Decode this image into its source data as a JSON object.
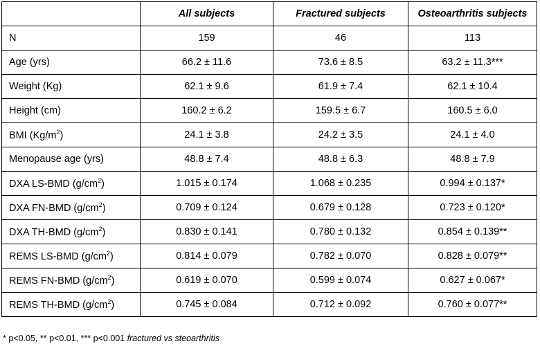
{
  "table": {
    "headers": [
      "",
      "All subjects",
      "Fractured subjects",
      "Osteoarthritis subjects"
    ],
    "rows": [
      {
        "label": "N",
        "all": "159",
        "fractured": "46",
        "osteoarthritis": "113"
      },
      {
        "label": "Age (yrs)",
        "all": "66.2 ± 11.6",
        "fractured": "73.6 ± 8.5",
        "osteoarthritis": "63.2 ± 11.3***"
      },
      {
        "label": "Weight (Kg)",
        "all": "62.1 ± 9.6",
        "fractured": "61.9 ± 7.4",
        "osteoarthritis": "62.1 ± 10.4"
      },
      {
        "label": "Height (cm)",
        "all": "160.2 ± 6.2",
        "fractured": "159.5 ± 6.7",
        "osteoarthritis": "160.5 ± 6.0"
      },
      {
        "label": "BMI (Kg/m",
        "label_sup": "2",
        "label_end": ")",
        "all": "24.1 ± 3.8",
        "fractured": "24.2 ± 3.5",
        "osteoarthritis": "24.1 ± 4.0"
      },
      {
        "label": "Menopause age (yrs)",
        "all": "48.8 ± 7.4",
        "fractured": "48.8 ± 6.3",
        "osteoarthritis": "48.8 ± 7.9"
      },
      {
        "label": "DXA LS-BMD (g/cm",
        "label_sup": "2",
        "label_end": ")",
        "all": "1.015 ± 0.174",
        "fractured": "1.068 ± 0.235",
        "osteoarthritis": "0.994 ± 0.137*"
      },
      {
        "label": "DXA FN-BMD (g/cm",
        "label_sup": "2",
        "label_end": ")",
        "all": "0.709 ± 0.124",
        "fractured": "0.679 ± 0.128",
        "osteoarthritis": "0.723 ± 0.120*"
      },
      {
        "label": "DXA TH-BMD (g/cm",
        "label_sup": "2",
        "label_end": ")",
        "all": "0.830 ± 0.141",
        "fractured": "0.780 ± 0.132",
        "osteoarthritis": "0.854 ± 0.139**"
      },
      {
        "label": "REMS LS-BMD (g/cm",
        "label_sup": "2",
        "label_end": ")",
        "all": "0.814 ± 0.079",
        "fractured": "0.782 ± 0.070",
        "osteoarthritis": "0.828 ± 0.079**"
      },
      {
        "label": "REMS FN-BMD (g/cm",
        "label_sup": "2",
        "label_end": ")",
        "all": "0.619 ± 0.070",
        "fractured": "0.599 ± 0.074",
        "osteoarthritis": "0.627 ± 0.067*"
      },
      {
        "label": "REMS TH-BMD (g/cm",
        "label_sup": "2",
        "label_end": ")",
        "all": "0.745 ± 0.084",
        "fractured": "0.712 ± 0.092",
        "osteoarthritis": "0.760 ± 0.077**"
      }
    ]
  },
  "footnote": {
    "plain": "* p<0.05, ** p<0.01, *** p<0.001 ",
    "italic": "fractured vs steoarthritis"
  }
}
